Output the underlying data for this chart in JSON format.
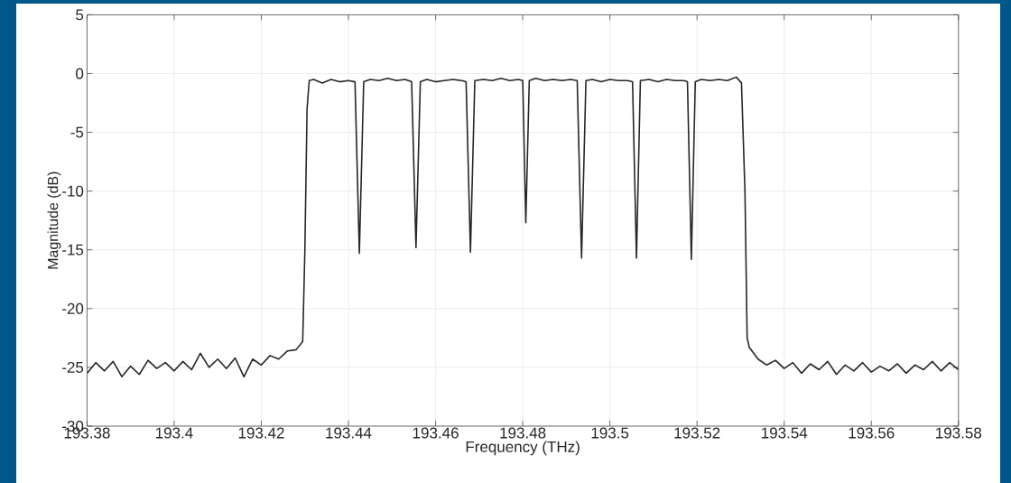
{
  "chart_data": {
    "type": "line",
    "xlabel": "Frequency (THz)",
    "ylabel": "Magnitude (dB)",
    "xlim": [
      193.38,
      193.58
    ],
    "ylim": [
      -30,
      5
    ],
    "xticks": [
      193.38,
      193.4,
      193.42,
      193.44,
      193.46,
      193.48,
      193.5,
      193.52,
      193.54,
      193.56,
      193.58
    ],
    "yticks": [
      -30,
      -25,
      -20,
      -15,
      -10,
      -5,
      0,
      5
    ],
    "grid": true,
    "series": [
      {
        "color": "#262626",
        "x": [
          193.38,
          193.382,
          193.384,
          193.386,
          193.388,
          193.39,
          193.392,
          193.394,
          193.396,
          193.398,
          193.4,
          193.402,
          193.404,
          193.406,
          193.408,
          193.41,
          193.412,
          193.414,
          193.416,
          193.418,
          193.42,
          193.422,
          193.424,
          193.426,
          193.428,
          193.4295,
          193.43,
          193.4305,
          193.431,
          193.432,
          193.434,
          193.436,
          193.438,
          193.44,
          193.4415,
          193.4425,
          193.4435,
          193.445,
          193.447,
          193.449,
          193.451,
          193.453,
          193.4545,
          193.4555,
          193.4565,
          193.458,
          193.46,
          193.462,
          193.464,
          193.466,
          193.467,
          193.468,
          193.469,
          193.471,
          193.473,
          193.475,
          193.477,
          193.479,
          193.48,
          193.4807,
          193.4815,
          193.483,
          193.485,
          193.487,
          193.489,
          193.491,
          193.4925,
          193.4935,
          193.4945,
          193.496,
          193.498,
          193.5,
          193.502,
          193.504,
          193.5052,
          193.5061,
          193.507,
          193.509,
          193.511,
          193.513,
          193.515,
          193.517,
          193.5178,
          193.5187,
          193.5196,
          193.521,
          193.523,
          193.525,
          193.527,
          193.529,
          193.5302,
          193.531,
          193.5315,
          193.532,
          193.534,
          193.536,
          193.538,
          193.54,
          193.542,
          193.544,
          193.546,
          193.548,
          193.55,
          193.552,
          193.554,
          193.556,
          193.558,
          193.56,
          193.562,
          193.564,
          193.566,
          193.568,
          193.57,
          193.572,
          193.574,
          193.576,
          193.578,
          193.58
        ],
        "values": [
          -25.5,
          -24.6,
          -25.3,
          -24.5,
          -25.8,
          -24.9,
          -25.6,
          -24.4,
          -25.1,
          -24.6,
          -25.3,
          -24.5,
          -25.2,
          -23.8,
          -25.0,
          -24.3,
          -25.1,
          -24.2,
          -25.8,
          -24.3,
          -24.8,
          -24.0,
          -24.3,
          -23.6,
          -23.5,
          -22.8,
          -15,
          -3,
          -0.6,
          -0.5,
          -0.8,
          -0.5,
          -0.7,
          -0.6,
          -0.7,
          -15.3,
          -0.7,
          -0.5,
          -0.6,
          -0.4,
          -0.6,
          -0.5,
          -0.7,
          -14.8,
          -0.7,
          -0.5,
          -0.7,
          -0.6,
          -0.5,
          -0.6,
          -0.7,
          -15.2,
          -0.6,
          -0.5,
          -0.6,
          -0.4,
          -0.6,
          -0.5,
          -0.6,
          -12.7,
          -0.6,
          -0.4,
          -0.6,
          -0.5,
          -0.6,
          -0.5,
          -0.6,
          -15.7,
          -0.6,
          -0.5,
          -0.7,
          -0.5,
          -0.6,
          -0.6,
          -0.7,
          -15.7,
          -0.6,
          -0.5,
          -0.7,
          -0.5,
          -0.6,
          -0.6,
          -0.7,
          -15.8,
          -0.7,
          -0.5,
          -0.6,
          -0.5,
          -0.6,
          -0.3,
          -0.8,
          -10,
          -22.5,
          -23.3,
          -24.3,
          -24.8,
          -24.4,
          -25.1,
          -24.6,
          -25.5,
          -24.7,
          -25.2,
          -24.5,
          -25.6,
          -24.8,
          -25.3,
          -24.6,
          -25.4,
          -24.9,
          -25.3,
          -24.7,
          -25.5,
          -24.8,
          -25.2,
          -24.5,
          -25.3,
          -24.6,
          -25.2
        ]
      }
    ]
  }
}
